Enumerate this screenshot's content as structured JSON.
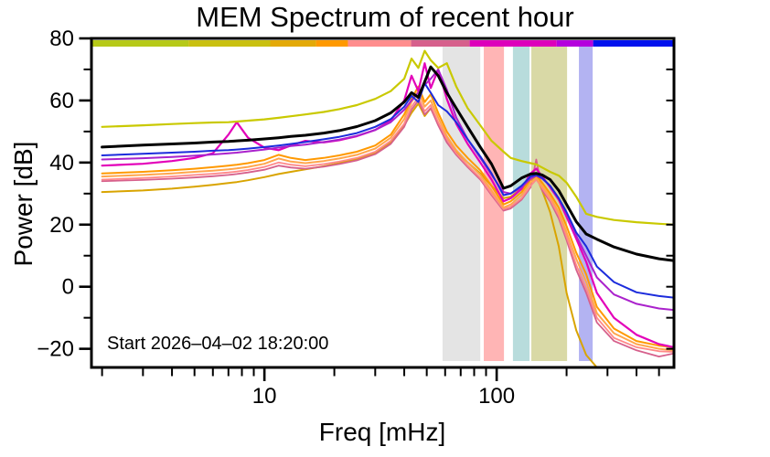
{
  "title": "MEM Spectrum of recent hour",
  "chart_data": {
    "type": "line",
    "title": "MEM Spectrum of recent hour",
    "xlabel": "Freq [mHz]",
    "ylabel": "Power [dB]",
    "annotation": "Start 2026–04–02 18:20:00",
    "xscale": "log",
    "xlim": [
      1.8,
      580
    ],
    "ylim": [
      -26,
      80
    ],
    "grid": false,
    "legend": "none",
    "x_major_ticks": [
      10,
      100
    ],
    "x_major_tick_labels": [
      "10",
      "100"
    ],
    "x_minor_ticks": [
      2,
      3,
      4,
      5,
      6,
      7,
      8,
      9,
      20,
      30,
      40,
      50,
      60,
      70,
      80,
      90,
      200,
      300,
      400,
      500
    ],
    "y_major_ticks": [
      80,
      60,
      40,
      20,
      0,
      -20
    ],
    "y_major_tick_labels": [
      "80",
      "60",
      "40",
      "20",
      "0",
      "−20"
    ],
    "y_minor_ticks": [
      70,
      50,
      30,
      10,
      -10
    ],
    "y_right_ticks": [
      70,
      60,
      50,
      40,
      30,
      20,
      10,
      0,
      -10,
      -20
    ],
    "x": [
      2,
      3,
      4,
      5,
      6,
      7,
      7.6,
      8.5,
      10,
      11.5,
      13,
      15,
      18,
      21,
      25,
      30,
      35,
      40,
      43,
      46,
      49,
      52,
      56,
      61,
      67,
      75,
      85,
      95,
      107,
      115,
      128,
      140,
      148,
      157,
      170,
      185,
      200,
      220,
      243,
      270,
      320,
      400,
      500,
      580
    ],
    "series": [
      {
        "name": "spectrum-goldenrod",
        "color": "#d9a400",
        "width": 2,
        "values": [
          30.5,
          31,
          31.6,
          32.2,
          32.8,
          33.4,
          33.7,
          34.3,
          35.3,
          36.3,
          37,
          37.8,
          38.8,
          39.8,
          41.2,
          43.2,
          46.5,
          52,
          56,
          59,
          55,
          57.5,
          52.5,
          47.5,
          43.5,
          40,
          36.5,
          32.5,
          28.5,
          29,
          31.5,
          34.5,
          35.5,
          31,
          24,
          13,
          -2,
          -14,
          -22,
          -26,
          null,
          null,
          null,
          null
        ]
      },
      {
        "name": "spectrum-rose",
        "color": "#d6608c",
        "width": 1.8,
        "values": [
          34,
          34.4,
          34.8,
          35.2,
          35.6,
          36,
          36.3,
          36.8,
          37.7,
          39,
          38.4,
          38,
          38.7,
          39.5,
          40.7,
          42.7,
          46,
          51.5,
          57,
          60,
          55.5,
          57.5,
          52,
          46.5,
          42.5,
          38.5,
          34.5,
          29.5,
          24.5,
          25.2,
          28,
          32,
          41,
          31,
          27.5,
          22,
          15,
          5.5,
          -2,
          -11.5,
          -17.5,
          -20.5,
          -22.5,
          -21.5
        ]
      },
      {
        "name": "spectrum-salmon",
        "color": "#ff8888",
        "width": 1.8,
        "values": [
          34.5,
          35,
          35.5,
          36,
          36.4,
          36.8,
          37.1,
          37.6,
          38.6,
          40,
          39.3,
          38.8,
          39.5,
          40.3,
          41.5,
          43.5,
          47,
          52.5,
          58,
          61,
          56.5,
          58.5,
          53,
          47.5,
          43,
          39,
          35,
          30,
          25,
          25.8,
          28.5,
          32.5,
          34.5,
          31.8,
          28,
          23,
          16,
          7,
          -0.5,
          -10,
          -16.5,
          -19.5,
          -20.8,
          -21
        ]
      },
      {
        "name": "spectrum-amber",
        "color": "#ffa64d",
        "width": 2,
        "values": [
          35.5,
          36,
          36.5,
          37,
          37.4,
          37.8,
          38.1,
          38.6,
          39.6,
          41.3,
          40.3,
          39.8,
          40.5,
          41.3,
          42.5,
          44.5,
          48,
          54,
          59.5,
          63,
          58,
          60,
          54.5,
          48.5,
          44,
          40,
          36,
          31,
          25.5,
          26.5,
          29.5,
          33.5,
          35,
          32.5,
          29,
          24,
          17.5,
          9,
          1.5,
          -8.5,
          -15,
          -18.5,
          -20,
          -20.5
        ]
      },
      {
        "name": "spectrum-orange",
        "color": "#ff9900",
        "width": 2,
        "values": [
          36.5,
          37,
          37.5,
          38,
          38.5,
          39,
          39.3,
          39.8,
          40.8,
          42.5,
          41.5,
          40.8,
          41.5,
          42.3,
          43.5,
          45.5,
          49,
          55.5,
          60.5,
          64.5,
          59.5,
          62,
          56,
          50,
          45.5,
          41.5,
          37.5,
          32.5,
          26.5,
          27.5,
          30.5,
          34.5,
          36,
          33.5,
          30,
          25.5,
          19.5,
          11,
          4,
          -6.5,
          -13.5,
          -17.5,
          -19,
          -19.5
        ]
      },
      {
        "name": "spectrum-magenta",
        "color": "#e300b9",
        "width": 2.2,
        "values": [
          39,
          39.6,
          40.5,
          41.5,
          43,
          49,
          53,
          48,
          44.8,
          44,
          45.5,
          47,
          46.5,
          47.2,
          48.5,
          50.5,
          53.5,
          60,
          68,
          63,
          72,
          64,
          70,
          60.5,
          52.5,
          46,
          40,
          34.5,
          27.5,
          28.5,
          31.5,
          36.5,
          38,
          35.5,
          32,
          28,
          22.5,
          15.5,
          8,
          -2,
          -10,
          -15.5,
          -18.5,
          -19.5
        ]
      },
      {
        "name": "spectrum-purple",
        "color": "#aa22cc",
        "width": 2,
        "values": [
          41,
          41.4,
          41.8,
          42.2,
          42.6,
          43,
          43.2,
          43.6,
          44.2,
          44.8,
          45.3,
          45.8,
          46.6,
          47.4,
          48.6,
          50.5,
          53,
          57,
          60,
          62.5,
          65,
          67,
          70,
          63.5,
          54.5,
          47.5,
          41.5,
          36,
          30.5,
          30,
          32,
          34.8,
          35.8,
          34.8,
          32.5,
          28.5,
          23.5,
          16.5,
          10,
          3,
          -2.5,
          -5.5,
          -7,
          -7.5
        ]
      },
      {
        "name": "spectrum-blue",
        "color": "#1c2cdc",
        "width": 2,
        "values": [
          42.3,
          42.8,
          43.2,
          43.5,
          43.8,
          44,
          44.2,
          44.5,
          45,
          45.5,
          46,
          46.6,
          47.5,
          48.3,
          49.5,
          51.5,
          54,
          58,
          61.5,
          59.5,
          65.5,
          62.5,
          58.5,
          56.5,
          53,
          47.5,
          42,
          36.5,
          29.5,
          30,
          32.5,
          35.5,
          36,
          35,
          32.5,
          28.5,
          24,
          17.5,
          13,
          6.5,
          1.5,
          -1.8,
          -3,
          -3.5
        ]
      },
      {
        "name": "spectrum-black",
        "color": "#000000",
        "width": 3,
        "values": [
          45,
          45.6,
          46,
          46.3,
          46.6,
          46.8,
          47,
          47.2,
          47.6,
          48,
          48.4,
          48.8,
          49.5,
          50.3,
          51.6,
          53.5,
          56,
          59.5,
          62.5,
          61,
          66,
          70.8,
          68,
          62.5,
          57.5,
          51.5,
          45,
          39.5,
          31.7,
          32.5,
          35,
          36.3,
          36.5,
          36,
          34.5,
          31,
          26.5,
          21,
          17,
          15.3,
          12.8,
          10.5,
          9,
          8.4
        ]
      },
      {
        "name": "spectrum-yellow",
        "color": "#c9c900",
        "width": 2.2,
        "values": [
          51.5,
          52,
          52.4,
          52.7,
          52.9,
          53,
          53.2,
          53.5,
          53.9,
          54.4,
          54.9,
          55.5,
          56.3,
          57.2,
          58.5,
          60.5,
          63,
          67,
          73.5,
          70.5,
          76,
          73,
          70.5,
          72,
          64.5,
          57.5,
          52,
          47,
          43.5,
          41.5,
          40.5,
          39.8,
          39.4,
          38.4,
          37,
          35.8,
          33.5,
          29,
          23.5,
          22.5,
          21.5,
          20.8,
          20.3,
          20
        ]
      }
    ],
    "bands": [
      {
        "name": "band-gray",
        "color": "#e4e4e4",
        "x0": 58.5,
        "x1": 85
      },
      {
        "name": "band-pink",
        "color": "#ffb5b5",
        "x0": 88,
        "x1": 107.5
      },
      {
        "name": "band-teal",
        "color": "#b8dcdc",
        "x0": 117.5,
        "x1": 138.5
      },
      {
        "name": "band-olive",
        "color": "#d9d9a6",
        "x0": 141,
        "x1": 201
      },
      {
        "name": "band-lavender",
        "color": "#b3b3f2",
        "x0": 226,
        "x1": 259
      }
    ],
    "colorbar_segments": [
      {
        "color": "#b6c918",
        "f0": 0.0,
        "f1": 0.165
      },
      {
        "color": "#c9c010",
        "f0": 0.165,
        "f1": 0.306
      },
      {
        "color": "#e3a908",
        "f0": 0.306,
        "f1": 0.385
      },
      {
        "color": "#ff9900",
        "f0": 0.385,
        "f1": 0.44
      },
      {
        "color": "#ff8d8d",
        "f0": 0.44,
        "f1": 0.549
      },
      {
        "color": "#d6608c",
        "f0": 0.549,
        "f1": 0.65
      },
      {
        "color": "#dd00bb",
        "f0": 0.65,
        "f1": 0.8
      },
      {
        "color": "#b400dd",
        "f0": 0.8,
        "f1": 0.863
      },
      {
        "color": "#0011ee",
        "f0": 0.863,
        "f1": 1.0
      }
    ]
  }
}
